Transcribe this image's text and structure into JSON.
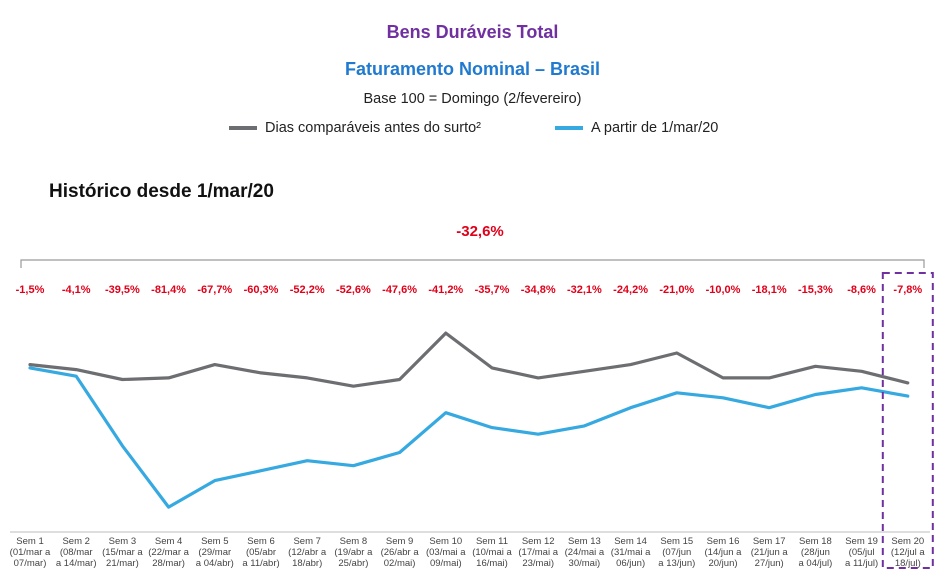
{
  "header": {
    "title": "Bens Duráveis Total",
    "subtitle": "Faturamento Nominal – Brasil",
    "base_note": "Base 100 = Domingo (2/fevereiro)"
  },
  "legend": {
    "item1": "Dias comparáveis antes do surto²",
    "item2": "A partir de 1/mar/20"
  },
  "section_title": "Histórico desde 1/mar/20",
  "colors": {
    "title": "#7030a0",
    "subtitle": "#1f7ad0",
    "before": "#6d6e71",
    "after": "#36a9e1",
    "labels": "#e1001a",
    "highlight": "#7030a0"
  },
  "chart_data": {
    "type": "line",
    "total_label": "-32,6%",
    "categories": [
      [
        "Sem 1",
        "(01/mar a",
        "07/mar)"
      ],
      [
        "Sem 2",
        "(08/mar",
        "a 14/mar)"
      ],
      [
        "Sem 3",
        "(15/mar a",
        "21/mar)"
      ],
      [
        "Sem 4",
        "(22/mar a",
        "28/mar)"
      ],
      [
        "Sem 5",
        "(29/mar",
        "a 04/abr)"
      ],
      [
        "Sem 6",
        "(05/abr",
        "a 11/abr)"
      ],
      [
        "Sem 7",
        "(12/abr a",
        "18/abr)"
      ],
      [
        "Sem 8",
        "(19/abr a",
        "25/abr)"
      ],
      [
        "Sem 9",
        "(26/abr a",
        "02/mai)"
      ],
      [
        "Sem 10",
        "(03/mai a",
        "09/mai)"
      ],
      [
        "Sem 11",
        "(10/mai a",
        "16/mai)"
      ],
      [
        "Sem 12",
        "(17/mai a",
        "23/mai)"
      ],
      [
        "Sem 13",
        "(24/mai a",
        "30/mai)"
      ],
      [
        "Sem 14",
        "(31/mai a",
        "06/jun)"
      ],
      [
        "Sem 15",
        "(07/jun",
        "a 13/jun)"
      ],
      [
        "Sem 16",
        "(14/jun a",
        "20/jun)"
      ],
      [
        "Sem 17",
        "(21/jun a",
        "27/jun)"
      ],
      [
        "Sem 18",
        "(28/jun",
        "a 04/jul)"
      ],
      [
        "Sem 19",
        "(05/jul",
        "a 11/jul)"
      ],
      [
        "Sem 20",
        "(12/jul a",
        "18/jul)"
      ]
    ],
    "pct_labels": [
      "-1,5%",
      "-4,1%",
      "-39,5%",
      "-81,4%",
      "-67,7%",
      "-60,3%",
      "-52,2%",
      "-52,6%",
      "-47,6%",
      "-41,2%",
      "-35,7%",
      "-34,8%",
      "-32,1%",
      "-24,2%",
      "-21,0%",
      "-10,0%",
      "-18,1%",
      "-15,3%",
      "-8,6%",
      "-7,8%"
    ],
    "series": [
      {
        "name": "Dias comparáveis antes do surto²",
        "values": [
          101,
          98,
          92,
          93,
          101,
          96,
          93,
          88,
          92,
          120,
          99,
          93,
          97,
          101,
          108,
          93,
          93,
          100,
          97,
          90
        ]
      },
      {
        "name": "A partir de 1/mar/20",
        "values": [
          99,
          94,
          52,
          15,
          31,
          37,
          43,
          40,
          48,
          72,
          63,
          59,
          64,
          75,
          84,
          81,
          75,
          83,
          87,
          82
        ]
      }
    ],
    "ylim": [
      0,
      140
    ],
    "highlight_index": 19
  }
}
